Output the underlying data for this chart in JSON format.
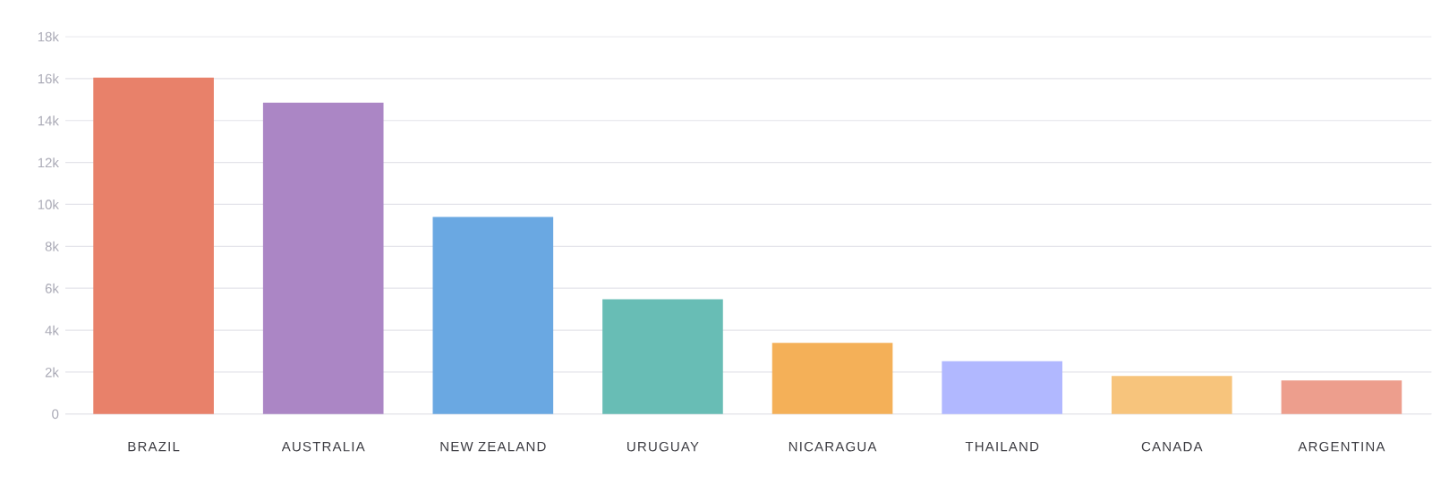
{
  "chart_data": {
    "type": "bar",
    "categories": [
      "BRAZIL",
      "AUSTRALIA",
      "NEW ZEALAND",
      "URUGUAY",
      "NICARAGUA",
      "THAILAND",
      "CANADA",
      "ARGENTINA"
    ],
    "values": [
      16050,
      14850,
      9400,
      5480,
      3400,
      2520,
      1820,
      1600
    ],
    "colors": [
      "#e8816a",
      "#ab86c5",
      "#6aa8e2",
      "#68bdb5",
      "#f4b058",
      "#b1b8ff",
      "#f7c47c",
      "#ed9e8d"
    ],
    "ylim": [
      0,
      18000
    ],
    "yticks": [
      {
        "value": 0,
        "label": "0"
      },
      {
        "value": 2000,
        "label": "2k"
      },
      {
        "value": 4000,
        "label": "4k"
      },
      {
        "value": 6000,
        "label": "6k"
      },
      {
        "value": 8000,
        "label": "8k"
      },
      {
        "value": 10000,
        "label": "10k"
      },
      {
        "value": 12000,
        "label": "12k"
      },
      {
        "value": 14000,
        "label": "14k"
      },
      {
        "value": 16000,
        "label": "16k"
      },
      {
        "value": 18000,
        "label": "18k"
      }
    ],
    "grid": "y"
  }
}
